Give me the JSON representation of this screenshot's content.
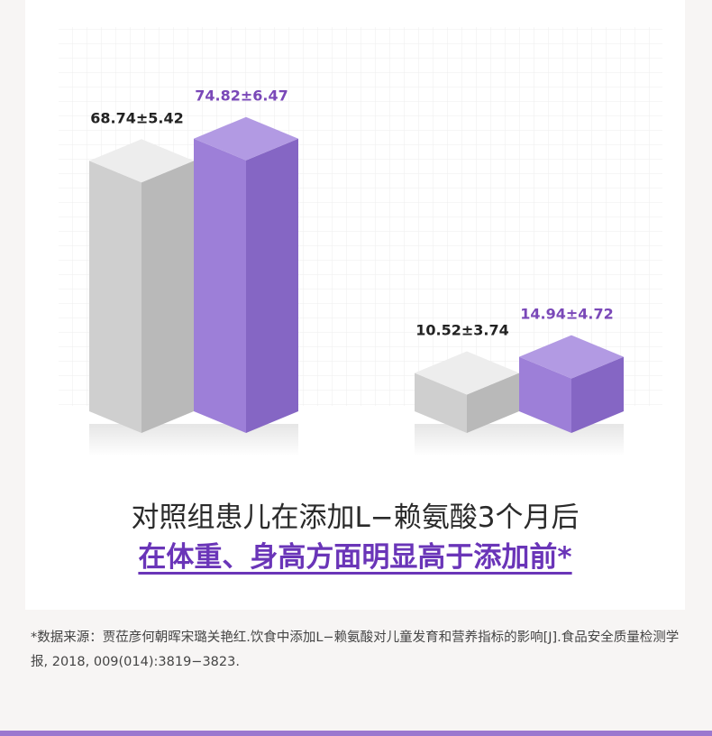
{
  "chart_data": {
    "type": "bar",
    "groups": [
      {
        "bars": [
          {
            "label": "68.74±5.42",
            "value": 68.74,
            "color": "gray"
          },
          {
            "label": "74.82±6.47",
            "value": 74.82,
            "color": "purple"
          }
        ]
      },
      {
        "bars": [
          {
            "label": "10.52±3.74",
            "value": 10.52,
            "color": "gray"
          },
          {
            "label": "14.94±4.72",
            "value": 14.94,
            "color": "purple"
          }
        ]
      }
    ],
    "title": "",
    "xlabel": "",
    "ylabel": "",
    "grid": true,
    "colors": {
      "gray_front": "#cfcfcf",
      "gray_side": "#b9b9b9",
      "gray_top": "#ededed",
      "purple_front": "#9d7fd8",
      "purple_side": "#8566c4",
      "purple_top": "#b29ae3",
      "gray_label": "#222222",
      "purple_label": "#7a48b8"
    }
  },
  "headline": {
    "line1": "对照组患儿在添加L−赖氨酸3个月后",
    "line2": "在体重、身高方面明显高于添加前*"
  },
  "source_note": "*数据来源：贾莅彦何朝晖宋璐关艳红.饮食中添加L−赖氨酸对儿童发育和营养指标的影响[J].食品安全质量检测学报, 2018, 009(014):3819−3823."
}
